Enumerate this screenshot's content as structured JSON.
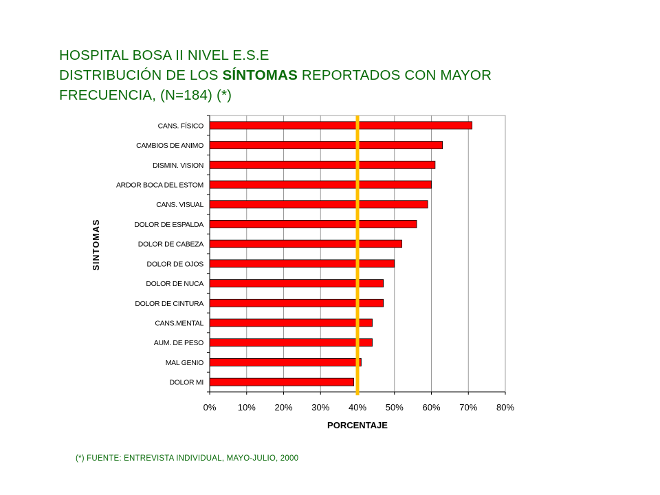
{
  "title": {
    "line1": "HOSPITAL BOSA II NIVEL E.S.E",
    "line2_prefix": "DISTRIBUCIÓN DE LOS ",
    "line2_bold": "SÍNTOMAS",
    "line2_suffix": " REPORTADOS CON MAYOR",
    "line3": "FRECUENCIA,   (N=184) (*)"
  },
  "footnote": "(*) FUENTE:  ENTREVISTA  INDIVIDUAL,  MAYO-JULIO,  2000",
  "colors": {
    "title": "#0a6b0a",
    "bar_fill": "#ff0000",
    "bar_stroke": "#000000",
    "reference_line": "#ffc000",
    "footnote": "#0a6b0a"
  },
  "chart_data": {
    "type": "bar",
    "orientation": "horizontal",
    "xlabel": "PORCENTAJE",
    "ylabel": "SINTOMAS",
    "xlim": [
      0,
      80
    ],
    "xticks": [
      "0%",
      "10%",
      "20%",
      "30%",
      "40%",
      "50%",
      "60%",
      "70%",
      "80%"
    ],
    "grid": "vertical",
    "legend": "none",
    "reference_line": 40,
    "categories": [
      "CANS. FÍSICO",
      "CAMBIOS DE ANIMO",
      "DISMIN. VISION",
      "ARDOR  BOCA DEL ESTOM",
      "CANS. VISUAL",
      "DOLOR DE ESPALDA",
      "DOLOR DE CABEZA",
      "DOLOR DE OJOS",
      "DOLOR DE NUCA",
      "DOLOR DE CINTURA",
      "CANS.MENTAL",
      "AUM. DE PESO",
      "MAL GENIO",
      "DOLOR  MI"
    ],
    "values": [
      71,
      63,
      61,
      60,
      59,
      56,
      52,
      50,
      47,
      47,
      44,
      44,
      41,
      39
    ]
  }
}
